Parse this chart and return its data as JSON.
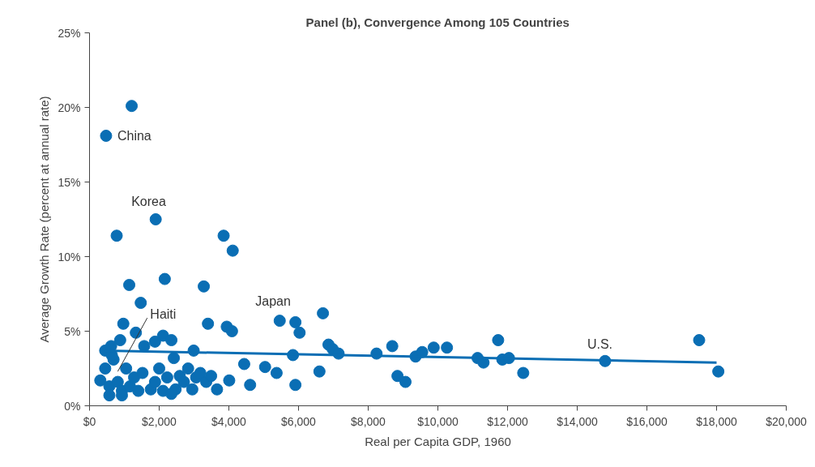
{
  "chart_data": {
    "type": "scatter",
    "title": "Panel (b), Convergence Among 105 Countries",
    "xlabel": "Real per Capita GDP, 1960",
    "ylabel": "Average Growth Rate (percent at annual rate)",
    "xlim": [
      0,
      20000
    ],
    "xticks": [
      {
        "value": 0,
        "label": "$0"
      },
      {
        "value": 2000,
        "label": "$2,000"
      },
      {
        "value": 4000,
        "label": "$4,000"
      },
      {
        "value": 6000,
        "label": "$6,000"
      },
      {
        "value": 8000,
        "label": "$8,000"
      },
      {
        "value": 10000,
        "label": "$10,000"
      },
      {
        "value": 12000,
        "label": "$12,000"
      },
      {
        "value": 14000,
        "label": "$14,000"
      },
      {
        "value": 16000,
        "label": "$16,000"
      },
      {
        "value": 18000,
        "label": "$18,000"
      },
      {
        "value": 20000,
        "label": "$20,000"
      }
    ],
    "ylim": [
      0,
      25
    ],
    "yticks": [
      {
        "value": 0,
        "label": "0%"
      },
      {
        "value": 5,
        "label": "5%"
      },
      {
        "value": 10,
        "label": "10%"
      },
      {
        "value": 15,
        "label": "15%"
      },
      {
        "value": 20,
        "label": "20%"
      },
      {
        "value": 25,
        "label": "25%"
      }
    ],
    "grid": false,
    "series": [
      {
        "marker": "circle",
        "color": "#0a6eb4",
        "x": [
          1210,
          475,
          1900,
          780,
          3850,
          4110,
          2160,
          1140,
          3280,
          1470,
          970,
          3400,
          3940,
          4090,
          5460,
          5910,
          6030,
          6700,
          1330,
          2110,
          2350,
          880,
          1880,
          620,
          1570,
          2990,
          2420,
          4440,
          5040,
          5370,
          4010,
          3660,
          4610,
          5840,
          5910,
          6600,
          6860,
          6980,
          7150,
          8240,
          8690,
          8840,
          9070,
          9360,
          9550,
          9880,
          10260,
          11140,
          11310,
          11730,
          11850,
          12040,
          12450,
          14800,
          17500,
          18050,
          310,
          450,
          570,
          690,
          810,
          930,
          450,
          640,
          1050,
          1160,
          1280,
          1400,
          1520,
          1760,
          1880,
          2000,
          2110,
          2230,
          2470,
          2590,
          2710,
          2830,
          2950,
          3060,
          3180,
          3350,
          3490,
          570,
          930,
          2350
        ],
        "values": [
          20.1,
          18.1,
          12.5,
          11.4,
          11.4,
          10.4,
          8.5,
          8.1,
          8.0,
          6.9,
          5.5,
          5.5,
          5.3,
          5.0,
          5.7,
          5.6,
          4.9,
          6.2,
          4.9,
          4.7,
          4.4,
          4.4,
          4.3,
          4.0,
          4.0,
          3.7,
          3.2,
          2.8,
          2.6,
          2.2,
          1.7,
          1.1,
          1.4,
          3.4,
          1.4,
          2.3,
          4.1,
          3.8,
          3.5,
          3.5,
          4.0,
          2.0,
          1.6,
          3.3,
          3.6,
          3.9,
          3.9,
          3.2,
          2.9,
          4.4,
          3.1,
          3.2,
          2.2,
          3.0,
          4.4,
          2.3,
          1.7,
          2.5,
          1.3,
          3.1,
          1.6,
          1.0,
          3.7,
          3.4,
          2.5,
          1.3,
          1.9,
          1.0,
          2.2,
          1.1,
          1.6,
          2.5,
          1.0,
          1.9,
          1.1,
          2.0,
          1.6,
          2.5,
          1.1,
          1.9,
          2.2,
          1.6,
          2.0,
          0.7,
          0.7,
          0.8
        ]
      },
      {
        "type": "line",
        "color": "#0a6eb4",
        "x": [
          450,
          18000
        ],
        "values": [
          3.7,
          2.9
        ]
      }
    ],
    "annotations": [
      {
        "text": "China",
        "x": 475,
        "y": 18.1
      },
      {
        "text": "Korea",
        "x": 1900,
        "y": 12.5
      },
      {
        "text": "Haiti",
        "x": 810,
        "y": 2.3
      },
      {
        "text": "Japan",
        "x": 5460,
        "y": 5.7
      },
      {
        "text": "U.S.",
        "x": 14800,
        "y": 3.0
      }
    ]
  }
}
